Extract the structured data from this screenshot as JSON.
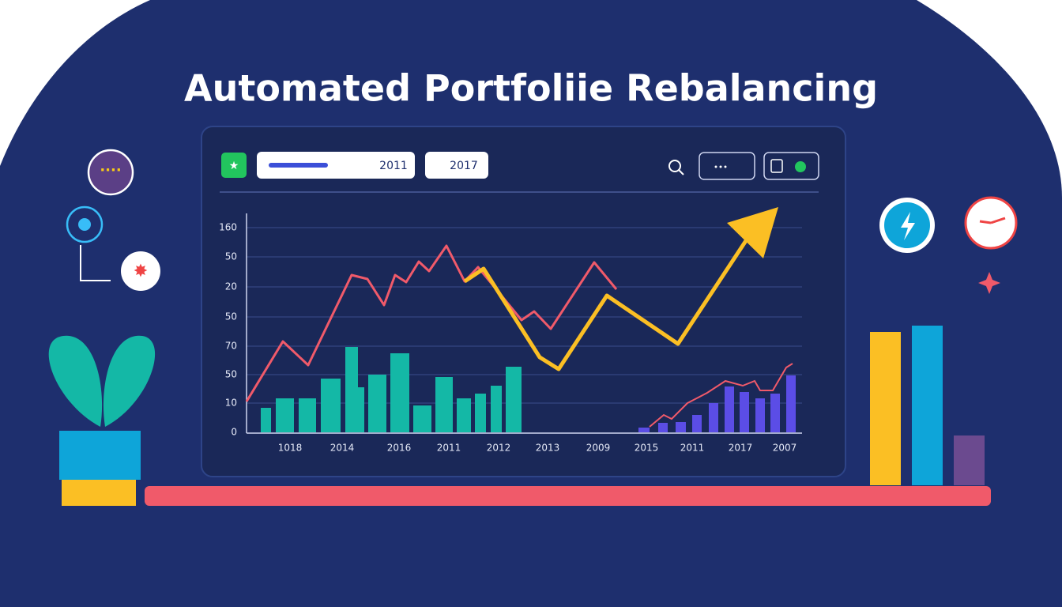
{
  "header": {
    "title": "Automated Portfoliie Rebalancing"
  },
  "toolbar": {
    "range_start": "2011",
    "range_end": "2017"
  },
  "chart": {
    "y_labels": [
      "160",
      "50",
      "20",
      "50",
      "70",
      "50",
      "10",
      "0"
    ],
    "x_labels": [
      "1018",
      "2014",
      "2016",
      "2011",
      "2012",
      "2013",
      "2009",
      "2015",
      "2011",
      "2017",
      "2007"
    ]
  }
}
